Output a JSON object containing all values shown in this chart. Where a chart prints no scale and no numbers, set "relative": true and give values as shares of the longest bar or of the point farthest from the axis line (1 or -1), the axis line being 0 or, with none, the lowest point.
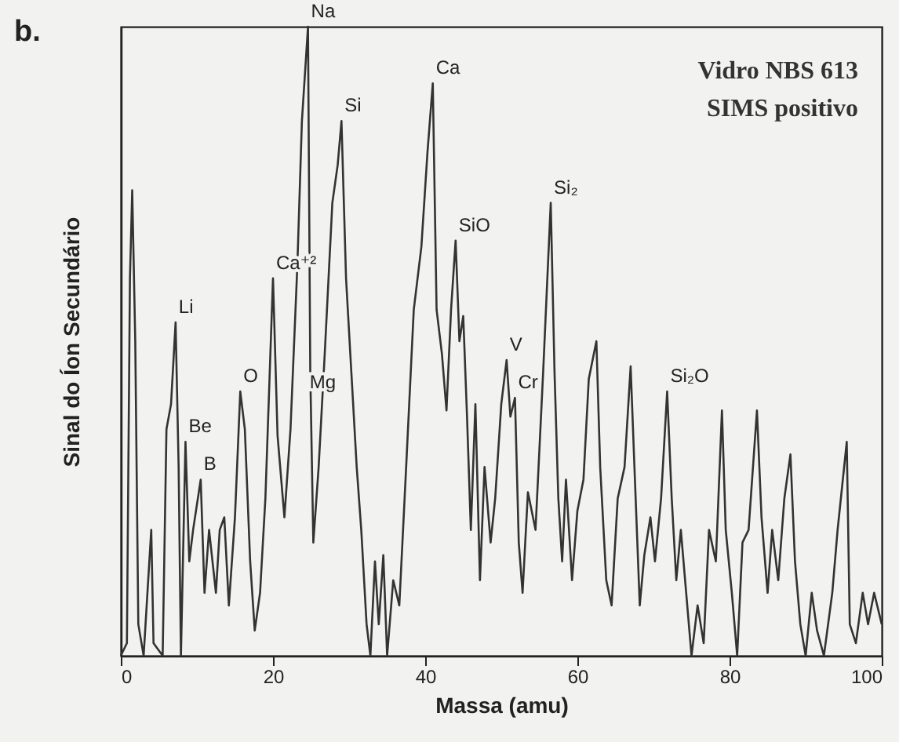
{
  "chart_data": {
    "type": "line",
    "relative": true,
    "xlabel": "Massa (amu)",
    "ylabel": "Sinal do Íon Secundário",
    "xlim": [
      0,
      100
    ],
    "xticks": [
      0,
      20,
      40,
      60,
      80,
      100
    ],
    "grid": false,
    "marker": "none",
    "line_style": "solid",
    "x": [
      0,
      0.8,
      1.2,
      1.5,
      1.9,
      2.3,
      3,
      4,
      4.3,
      5.5,
      6,
      6.6,
      7.2,
      7.6,
      7.9,
      8.5,
      9,
      9.5,
      10.5,
      11,
      11.6,
      12.5,
      13,
      13.6,
      14.2,
      15,
      15.7,
      16.3,
      17,
      17.6,
      18.3,
      19,
      20,
      20.6,
      21.5,
      22.3,
      23.2,
      23.8,
      24.6,
      24.9,
      25.3,
      26,
      26.8,
      27.8,
      28.5,
      29,
      29.6,
      30.3,
      31,
      31.6,
      32.3,
      32.8,
      33.4,
      33.9,
      34.5,
      35,
      35.8,
      36.6,
      37.5,
      38.5,
      39.5,
      40.3,
      41,
      41.5,
      42.2,
      42.8,
      43.4,
      44,
      44.5,
      45,
      45.5,
      46,
      46.6,
      47.2,
      47.8,
      48.6,
      49.2,
      50,
      50.7,
      51.2,
      51.8,
      52.3,
      52.8,
      53.5,
      54.5,
      55.5,
      56.5,
      57,
      57.5,
      58,
      58.5,
      59.3,
      60,
      60.8,
      61.5,
      62.5,
      63,
      63.8,
      64.5,
      65.3,
      66.2,
      67,
      67.5,
      68.2,
      68.8,
      69.6,
      70.2,
      71,
      71.8,
      72.4,
      73,
      73.6,
      74.3,
      75,
      75.8,
      76.6,
      77.3,
      78.2,
      79,
      79.5,
      80.3,
      81,
      81.7,
      82.5,
      83.6,
      84.2,
      85,
      85.6,
      86.4,
      87.2,
      88,
      88.6,
      89.3,
      90,
      90.8,
      91.5,
      92.4,
      93.5,
      94.2,
      95.4,
      95.8,
      96.6,
      97.5,
      98.2,
      99,
      100
    ],
    "series": [
      {
        "color": "#333333",
        "values": [
          0,
          0.02,
          0.6,
          0.74,
          0.5,
          0.05,
          0,
          0.2,
          0.02,
          0,
          0.36,
          0.4,
          0.53,
          0.3,
          0,
          0.34,
          0.15,
          0.2,
          0.28,
          0.1,
          0.2,
          0.1,
          0.2,
          0.22,
          0.08,
          0.22,
          0.42,
          0.36,
          0.15,
          0.04,
          0.1,
          0.25,
          0.6,
          0.35,
          0.22,
          0.36,
          0.62,
          0.85,
          1,
          0.45,
          0.18,
          0.3,
          0.48,
          0.72,
          0.78,
          0.85,
          0.6,
          0.45,
          0.3,
          0.2,
          0.05,
          0,
          0.15,
          0.05,
          0.16,
          0,
          0.12,
          0.08,
          0.3,
          0.55,
          0.65,
          0.8,
          0.91,
          0.55,
          0.48,
          0.39,
          0.55,
          0.66,
          0.5,
          0.54,
          0.38,
          0.2,
          0.4,
          0.12,
          0.3,
          0.18,
          0.25,
          0.4,
          0.47,
          0.38,
          0.41,
          0.18,
          0.1,
          0.26,
          0.2,
          0.45,
          0.72,
          0.45,
          0.25,
          0.15,
          0.28,
          0.12,
          0.23,
          0.28,
          0.44,
          0.5,
          0.3,
          0.12,
          0.08,
          0.25,
          0.3,
          0.46,
          0.3,
          0.08,
          0.16,
          0.22,
          0.15,
          0.25,
          0.42,
          0.25,
          0.12,
          0.2,
          0.1,
          0,
          0.08,
          0.02,
          0.2,
          0.15,
          0.39,
          0.2,
          0.1,
          0,
          0.18,
          0.2,
          0.39,
          0.22,
          0.1,
          0.2,
          0.12,
          0.25,
          0.32,
          0.15,
          0.05,
          0,
          0.1,
          0.04,
          0,
          0.1,
          0.2,
          0.34,
          0.05,
          0.02,
          0.1,
          0.05,
          0.1,
          0.05
        ]
      }
    ],
    "annotations": [
      "b.",
      "Vidro NBS 613",
      "SIMS positivo",
      {
        "text": "Li",
        "x": 7.2,
        "y": 0.53
      },
      {
        "text": "Be",
        "x": 8.5,
        "y": 0.34
      },
      {
        "text": "B",
        "x": 10.5,
        "y": 0.28
      },
      {
        "text": "O",
        "x": 15.7,
        "y": 0.42
      },
      {
        "text": "Ca⁺²",
        "x": 20,
        "y": 0.6
      },
      {
        "text": "Na",
        "x": 24.6,
        "y": 1
      },
      {
        "text": "Mg",
        "x": 24.4,
        "y": 0.41
      },
      {
        "text": "Si",
        "x": 29,
        "y": 0.85
      },
      {
        "text": "Ca",
        "x": 41,
        "y": 0.91
      },
      {
        "text": "SiO",
        "x": 44,
        "y": 0.66
      },
      {
        "text": "V",
        "x": 50.7,
        "y": 0.47
      },
      {
        "text": "Cr",
        "x": 51.8,
        "y": 0.41
      },
      {
        "text": "Si₂",
        "x": 56.5,
        "y": 0.72
      },
      {
        "text": "Si₂O",
        "x": 71.8,
        "y": 0.42
      }
    ]
  }
}
